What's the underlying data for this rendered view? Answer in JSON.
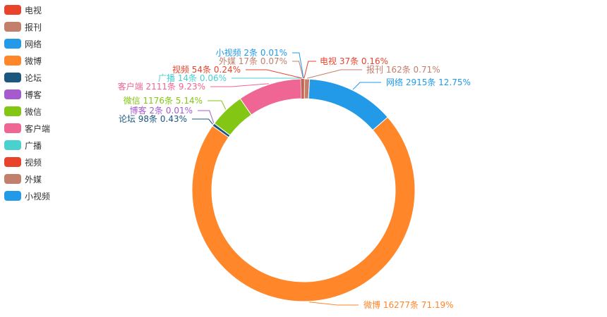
{
  "chart_data": {
    "type": "pie",
    "variant": "donut",
    "legend": {
      "placement": "top-left",
      "orientation": "vertical"
    },
    "slices": [
      {
        "name": "电视",
        "count": 37,
        "count_text": "37条",
        "percent_text": "0.16%",
        "color": "#e8432b"
      },
      {
        "name": "报刊",
        "count": 162,
        "count_text": "162条",
        "percent_text": "0.71%",
        "color": "#c17f6c"
      },
      {
        "name": "网络",
        "count": 2915,
        "count_text": "2915条",
        "percent_text": "12.75%",
        "color": "#229ae8"
      },
      {
        "name": "微博",
        "count": 16277,
        "count_text": "16277条",
        "percent_text": "71.19%",
        "color": "#ff8629"
      },
      {
        "name": "论坛",
        "count": 98,
        "count_text": "98条",
        "percent_text": "0.43%",
        "color": "#1c5780"
      },
      {
        "name": "博客",
        "count": 2,
        "count_text": "2条",
        "percent_text": "0.01%",
        "color": "#a55bce"
      },
      {
        "name": "微信",
        "count": 1176,
        "count_text": "1176条",
        "percent_text": "5.14%",
        "color": "#83c613"
      },
      {
        "name": "客户端",
        "count": 2111,
        "count_text": "2111条",
        "percent_text": "9.23%",
        "color": "#ef6593"
      },
      {
        "name": "广播",
        "count": 14,
        "count_text": "14条",
        "percent_text": "0.06%",
        "color": "#48d1cf"
      },
      {
        "name": "视频",
        "count": 54,
        "count_text": "54条",
        "percent_text": "0.24%",
        "color": "#e8432b"
      },
      {
        "name": "外媒",
        "count": 17,
        "count_text": "17条",
        "percent_text": "0.07%",
        "color": "#c17f6c"
      },
      {
        "name": "小视频",
        "count": 2,
        "count_text": "2条",
        "percent_text": "0.01%",
        "color": "#229ae8"
      }
    ]
  }
}
